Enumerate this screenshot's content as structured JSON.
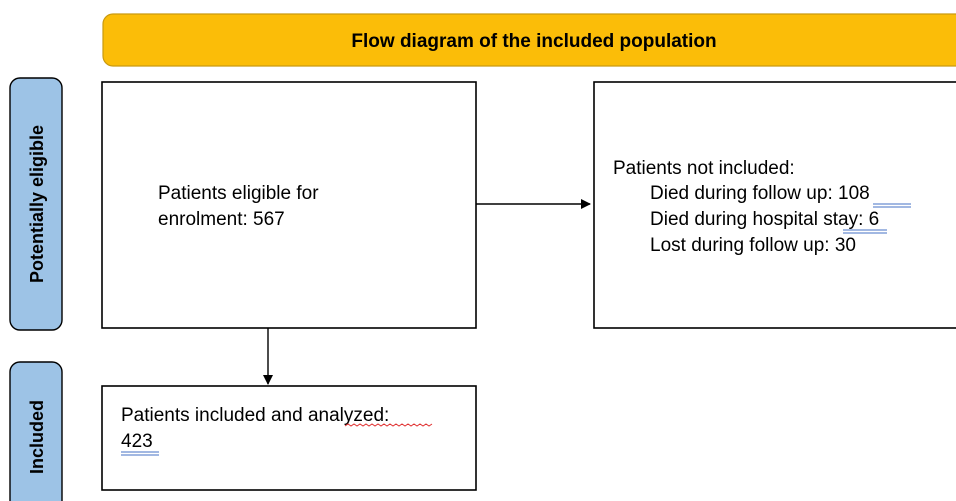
{
  "header": {
    "title": "Flow diagram of the included population"
  },
  "sections": [
    "Potentially eligible",
    "Included"
  ],
  "nodes": [
    {
      "lines": [
        "Patients eligible for",
        "enrolment: 567"
      ]
    },
    {
      "title": "Patients not included:",
      "lines": [
        "Died during follow up: 108",
        "Died during hospital stay: 6",
        "Lost during follow up: 30"
      ]
    },
    {
      "lines": [
        "Patients included and analyzed:",
        "423"
      ]
    }
  ]
}
